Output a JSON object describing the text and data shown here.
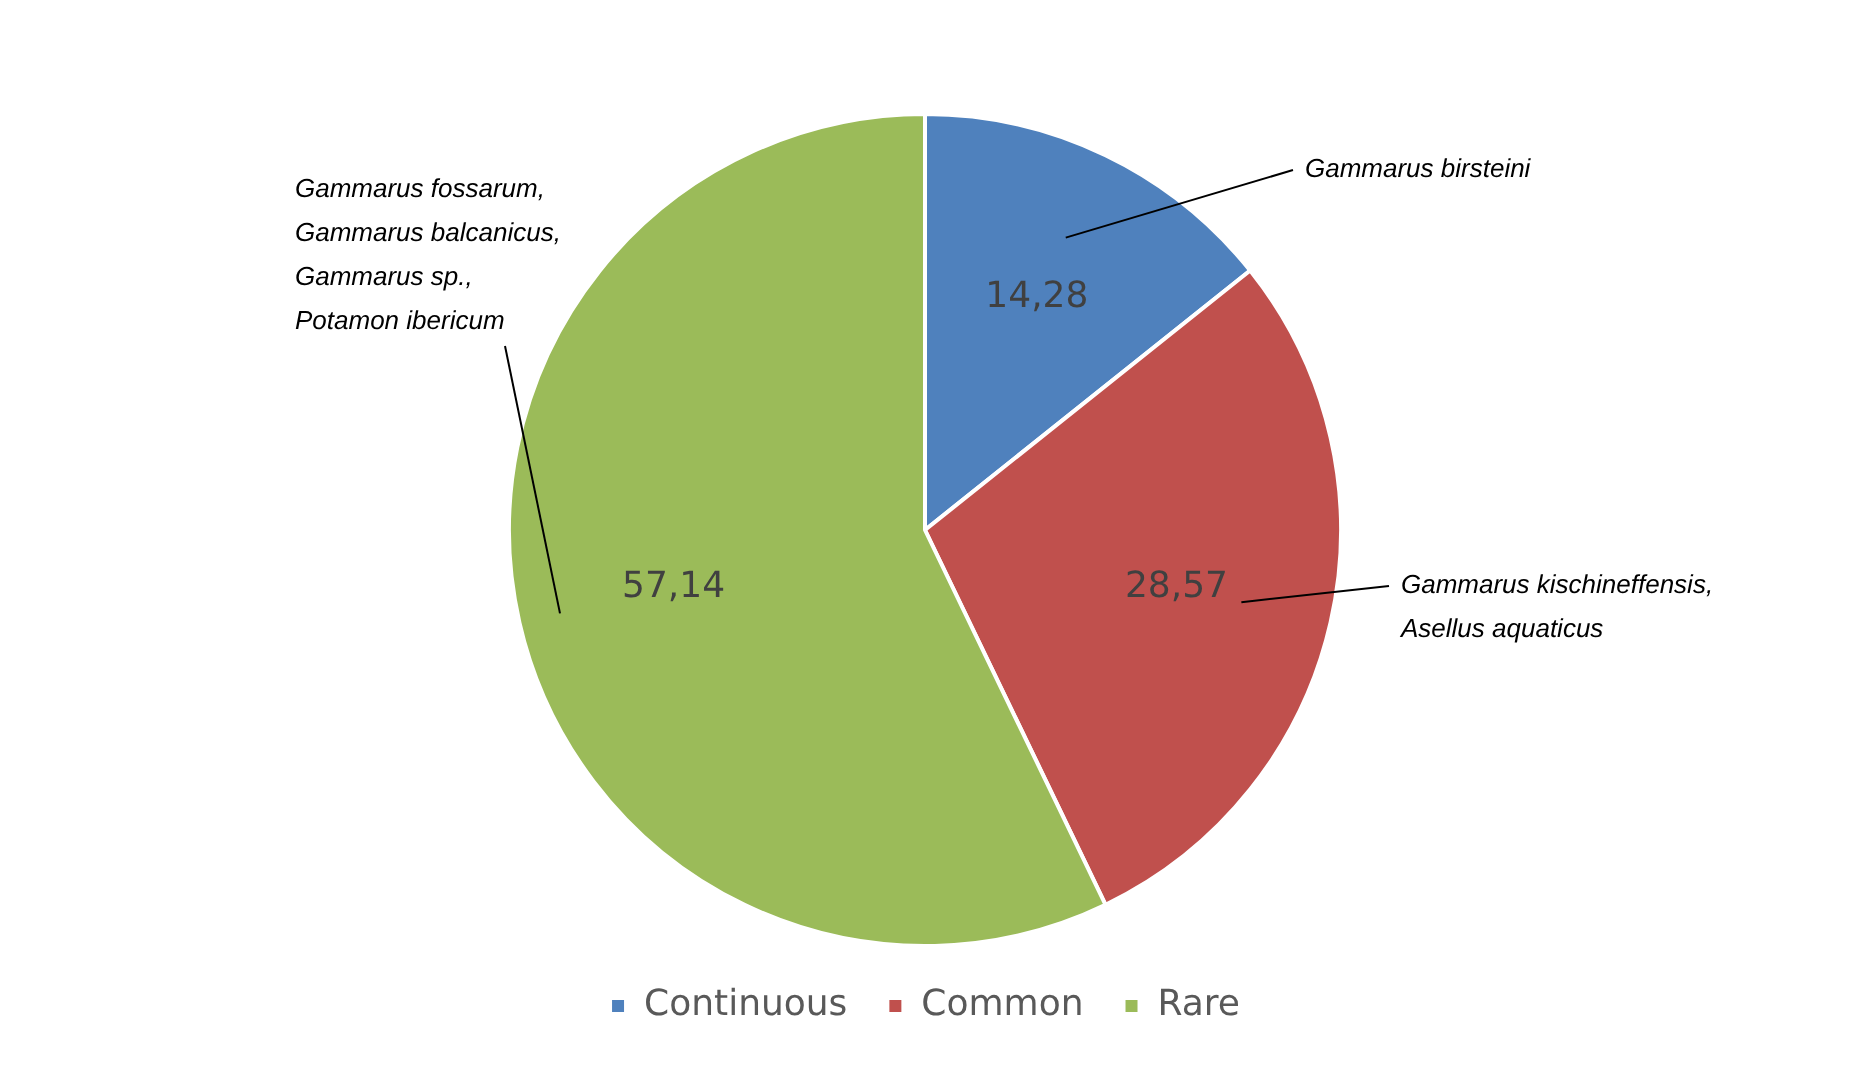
{
  "chart_data": {
    "type": "pie",
    "categories": [
      "Continuous",
      "Common",
      "Rare"
    ],
    "values": [
      14.28,
      28.57,
      57.14
    ],
    "value_labels": [
      "14,28",
      "28,57",
      "57,14"
    ],
    "colors": [
      "#4f81bd",
      "#c0504d",
      "#9bbb59"
    ],
    "legend": "bottom",
    "annotations": [
      "Gammarus birsteini",
      "Gammarus kischineffensis,\nAsellus aquaticus",
      "Gammarus fossarum,\nGammarus balcanicus,\nGammarus sp.,\nPotamon ibericum"
    ]
  }
}
